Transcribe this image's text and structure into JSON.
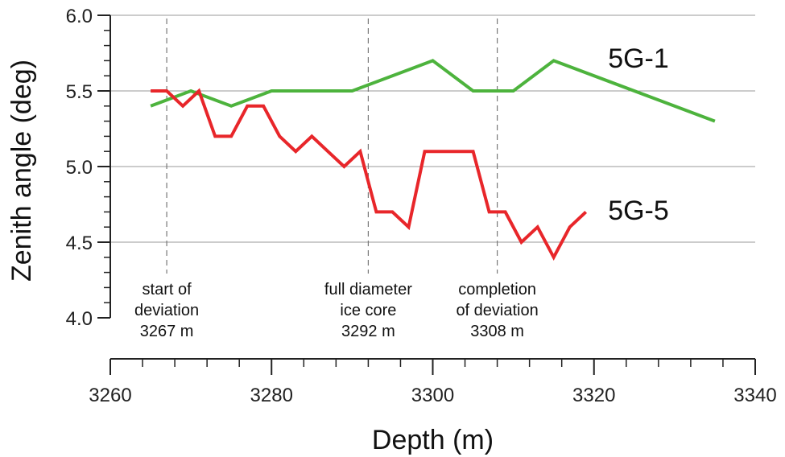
{
  "chart_data": {
    "type": "line",
    "xlabel": "Depth (m)",
    "ylabel": "Zenith angle (deg)",
    "xlim": [
      3260,
      3340
    ],
    "ylim": [
      4.0,
      6.0
    ],
    "x_ticks": [
      3260,
      3280,
      3300,
      3320,
      3340
    ],
    "y_ticks": [
      4.0,
      4.5,
      5.0,
      5.5,
      6.0
    ],
    "grid": "horizontal",
    "series": [
      {
        "name": "5G-1",
        "color": "#4db33d",
        "x": [
          3265,
          3270,
          3275,
          3280,
          3290,
          3300,
          3305,
          3310,
          3315,
          3335
        ],
        "y": [
          5.4,
          5.5,
          5.4,
          5.5,
          5.5,
          5.7,
          5.5,
          5.5,
          5.7,
          5.3
        ]
      },
      {
        "name": "5G-5",
        "color": "#e8262a",
        "x": [
          3265,
          3267,
          3269,
          3271,
          3273,
          3275,
          3277,
          3279,
          3281,
          3283,
          3285,
          3287,
          3289,
          3291,
          3293,
          3295,
          3297,
          3299,
          3301,
          3303,
          3305,
          3307,
          3309,
          3311,
          3313,
          3315,
          3317,
          3319
        ],
        "y": [
          5.5,
          5.5,
          5.4,
          5.5,
          5.2,
          5.2,
          5.4,
          5.4,
          5.2,
          5.1,
          5.2,
          5.1,
          5.0,
          5.1,
          4.7,
          4.7,
          4.6,
          5.1,
          5.1,
          5.1,
          5.1,
          4.7,
          4.7,
          4.5,
          4.6,
          4.4,
          4.6,
          4.7
        ]
      }
    ],
    "annotations": [
      {
        "x": 3267,
        "lines": [
          "start of",
          "deviation",
          "3267 m"
        ]
      },
      {
        "x": 3292,
        "lines": [
          "full diameter",
          "ice core",
          "3292 m"
        ]
      },
      {
        "x": 3308,
        "lines": [
          "completion",
          "of deviation",
          "3308 m"
        ]
      }
    ]
  }
}
